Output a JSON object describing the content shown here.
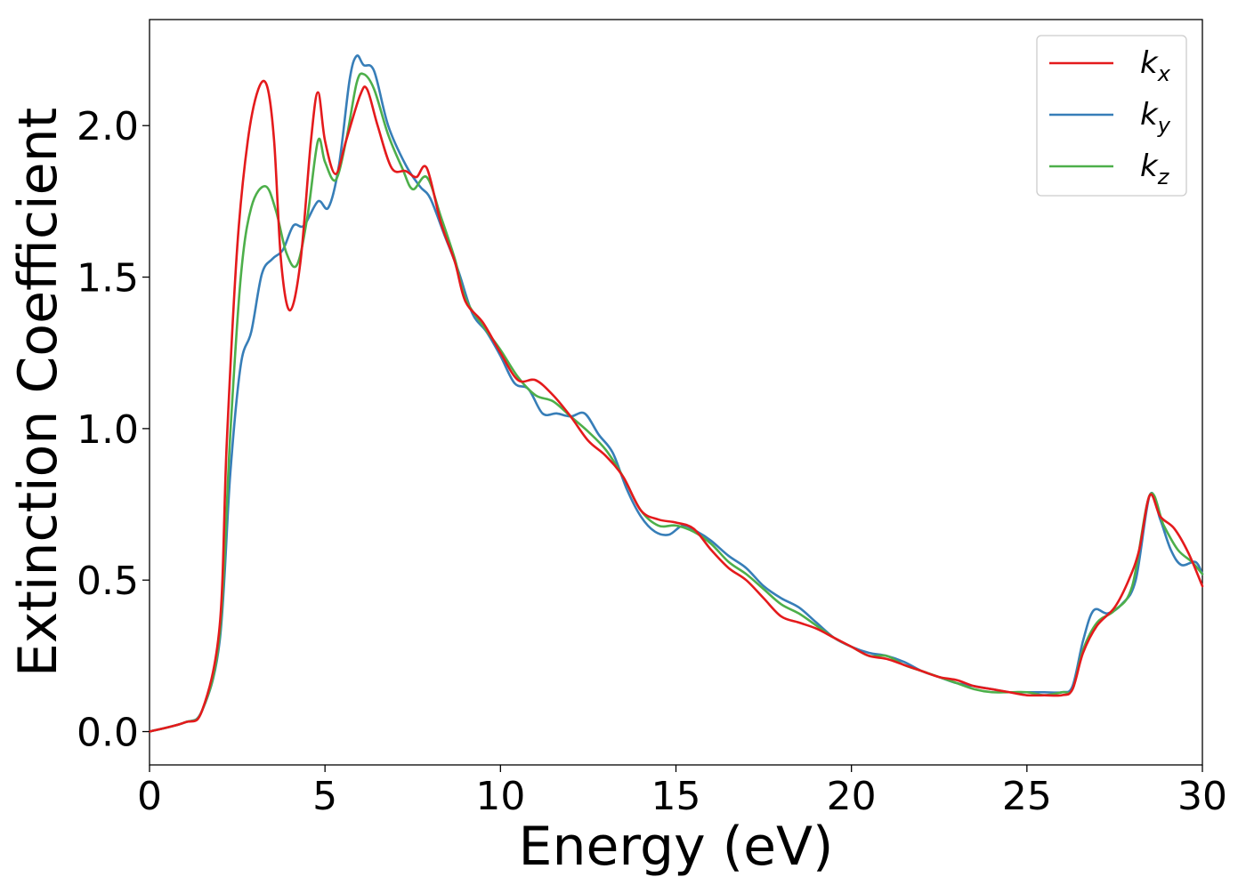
{
  "chart_data": {
    "type": "line",
    "title": "",
    "xlabel": "Energy (eV)",
    "ylabel": "Extinction Coefficient",
    "xlim": [
      0,
      30
    ],
    "ylim": [
      -0.11,
      2.35
    ],
    "xticks": [
      0,
      5,
      10,
      15,
      20,
      25,
      30
    ],
    "xtick_labels": [
      "0",
      "5",
      "10",
      "15",
      "20",
      "25",
      "30"
    ],
    "yticks": [
      0.0,
      0.5,
      1.0,
      1.5,
      2.0
    ],
    "ytick_labels": [
      "0.0",
      "0.5",
      "1.0",
      "1.5",
      "2.0"
    ],
    "grid": false,
    "legend_position": "top-right",
    "series": [
      {
        "name": "k_x",
        "label_base": "k",
        "label_sub": "x",
        "color": "#e41a1c",
        "points": [
          [
            0,
            0.0
          ],
          [
            1,
            0.03
          ],
          [
            1.5,
            0.07
          ],
          [
            2,
            0.35
          ],
          [
            2.2,
            0.95
          ],
          [
            2.5,
            1.6
          ],
          [
            2.8,
            1.95
          ],
          [
            3.1,
            2.12
          ],
          [
            3.35,
            2.13
          ],
          [
            3.55,
            1.95
          ],
          [
            3.75,
            1.55
          ],
          [
            4.0,
            1.39
          ],
          [
            4.3,
            1.55
          ],
          [
            4.6,
            1.95
          ],
          [
            4.8,
            2.11
          ],
          [
            5.0,
            1.95
          ],
          [
            5.3,
            1.84
          ],
          [
            5.6,
            1.95
          ],
          [
            6.0,
            2.1
          ],
          [
            6.2,
            2.12
          ],
          [
            6.5,
            2.0
          ],
          [
            6.9,
            1.86
          ],
          [
            7.3,
            1.85
          ],
          [
            7.6,
            1.83
          ],
          [
            7.9,
            1.86
          ],
          [
            8.3,
            1.68
          ],
          [
            8.7,
            1.55
          ],
          [
            9.0,
            1.42
          ],
          [
            9.5,
            1.35
          ],
          [
            10.0,
            1.25
          ],
          [
            10.5,
            1.16
          ],
          [
            11.0,
            1.16
          ],
          [
            11.5,
            1.11
          ],
          [
            12.0,
            1.04
          ],
          [
            12.5,
            0.96
          ],
          [
            13.0,
            0.91
          ],
          [
            13.5,
            0.84
          ],
          [
            14.0,
            0.73
          ],
          [
            14.5,
            0.7
          ],
          [
            15.0,
            0.69
          ],
          [
            15.5,
            0.67
          ],
          [
            16.0,
            0.6
          ],
          [
            16.5,
            0.54
          ],
          [
            17.0,
            0.5
          ],
          [
            17.5,
            0.44
          ],
          [
            18.0,
            0.38
          ],
          [
            18.5,
            0.36
          ],
          [
            19.0,
            0.34
          ],
          [
            19.5,
            0.31
          ],
          [
            20.0,
            0.28
          ],
          [
            20.5,
            0.25
          ],
          [
            21.0,
            0.24
          ],
          [
            21.5,
            0.22
          ],
          [
            22.0,
            0.2
          ],
          [
            22.5,
            0.18
          ],
          [
            23.0,
            0.17
          ],
          [
            23.5,
            0.15
          ],
          [
            24.0,
            0.14
          ],
          [
            24.5,
            0.13
          ],
          [
            25.0,
            0.12
          ],
          [
            25.5,
            0.12
          ],
          [
            26.0,
            0.12
          ],
          [
            26.3,
            0.14
          ],
          [
            26.6,
            0.26
          ],
          [
            27.0,
            0.35
          ],
          [
            27.5,
            0.41
          ],
          [
            27.9,
            0.5
          ],
          [
            28.2,
            0.6
          ],
          [
            28.5,
            0.78
          ],
          [
            28.8,
            0.71
          ],
          [
            29.2,
            0.67
          ],
          [
            29.6,
            0.59
          ],
          [
            30.0,
            0.48
          ]
        ]
      },
      {
        "name": "k_y",
        "label_base": "k",
        "label_sub": "y",
        "color": "#377eb8",
        "points": [
          [
            0,
            0.0
          ],
          [
            1,
            0.03
          ],
          [
            1.5,
            0.07
          ],
          [
            2,
            0.3
          ],
          [
            2.3,
            0.85
          ],
          [
            2.6,
            1.21
          ],
          [
            2.9,
            1.32
          ],
          [
            3.2,
            1.51
          ],
          [
            3.5,
            1.56
          ],
          [
            3.8,
            1.59
          ],
          [
            4.1,
            1.67
          ],
          [
            4.4,
            1.67
          ],
          [
            4.8,
            1.75
          ],
          [
            5.1,
            1.73
          ],
          [
            5.4,
            1.87
          ],
          [
            5.7,
            2.15
          ],
          [
            5.9,
            2.23
          ],
          [
            6.1,
            2.2
          ],
          [
            6.4,
            2.18
          ],
          [
            6.8,
            2.0
          ],
          [
            7.3,
            1.87
          ],
          [
            7.7,
            1.8
          ],
          [
            8.0,
            1.76
          ],
          [
            8.4,
            1.64
          ],
          [
            8.8,
            1.52
          ],
          [
            9.2,
            1.38
          ],
          [
            9.6,
            1.32
          ],
          [
            10.0,
            1.24
          ],
          [
            10.4,
            1.15
          ],
          [
            10.8,
            1.13
          ],
          [
            11.2,
            1.05
          ],
          [
            11.6,
            1.05
          ],
          [
            12.0,
            1.04
          ],
          [
            12.4,
            1.05
          ],
          [
            12.8,
            0.98
          ],
          [
            13.2,
            0.92
          ],
          [
            13.6,
            0.8
          ],
          [
            14.0,
            0.71
          ],
          [
            14.4,
            0.66
          ],
          [
            14.8,
            0.65
          ],
          [
            15.2,
            0.68
          ],
          [
            15.6,
            0.66
          ],
          [
            16.0,
            0.63
          ],
          [
            16.5,
            0.58
          ],
          [
            17.0,
            0.54
          ],
          [
            17.5,
            0.48
          ],
          [
            18.0,
            0.44
          ],
          [
            18.5,
            0.41
          ],
          [
            19.0,
            0.36
          ],
          [
            19.5,
            0.31
          ],
          [
            20.0,
            0.28
          ],
          [
            20.5,
            0.26
          ],
          [
            21.0,
            0.25
          ],
          [
            21.5,
            0.23
          ],
          [
            22.0,
            0.2
          ],
          [
            22.5,
            0.18
          ],
          [
            23.0,
            0.16
          ],
          [
            23.5,
            0.15
          ],
          [
            24.0,
            0.14
          ],
          [
            24.5,
            0.13
          ],
          [
            25.0,
            0.13
          ],
          [
            25.5,
            0.13
          ],
          [
            26.0,
            0.13
          ],
          [
            26.3,
            0.15
          ],
          [
            26.6,
            0.3
          ],
          [
            26.9,
            0.4
          ],
          [
            27.3,
            0.39
          ],
          [
            27.7,
            0.42
          ],
          [
            28.1,
            0.5
          ],
          [
            28.5,
            0.78
          ],
          [
            28.8,
            0.7
          ],
          [
            29.1,
            0.6
          ],
          [
            29.4,
            0.55
          ],
          [
            29.8,
            0.56
          ],
          [
            30.0,
            0.52
          ]
        ]
      },
      {
        "name": "k_z",
        "label_base": "k",
        "label_sub": "z",
        "color": "#4daf4a",
        "points": [
          [
            0,
            0.0
          ],
          [
            1,
            0.03
          ],
          [
            1.5,
            0.07
          ],
          [
            2,
            0.32
          ],
          [
            2.3,
            0.98
          ],
          [
            2.6,
            1.5
          ],
          [
            2.9,
            1.73
          ],
          [
            3.3,
            1.8
          ],
          [
            3.6,
            1.72
          ],
          [
            3.9,
            1.58
          ],
          [
            4.2,
            1.54
          ],
          [
            4.5,
            1.7
          ],
          [
            4.8,
            1.95
          ],
          [
            5.0,
            1.88
          ],
          [
            5.3,
            1.82
          ],
          [
            5.6,
            1.95
          ],
          [
            5.9,
            2.14
          ],
          [
            6.1,
            2.17
          ],
          [
            6.4,
            2.12
          ],
          [
            6.8,
            1.97
          ],
          [
            7.2,
            1.86
          ],
          [
            7.5,
            1.79
          ],
          [
            7.9,
            1.83
          ],
          [
            8.3,
            1.7
          ],
          [
            8.7,
            1.56
          ],
          [
            9.0,
            1.43
          ],
          [
            9.5,
            1.34
          ],
          [
            10.0,
            1.26
          ],
          [
            10.5,
            1.17
          ],
          [
            11.0,
            1.11
          ],
          [
            11.5,
            1.09
          ],
          [
            12.0,
            1.04
          ],
          [
            12.5,
            0.99
          ],
          [
            13.0,
            0.93
          ],
          [
            13.5,
            0.84
          ],
          [
            14.0,
            0.73
          ],
          [
            14.5,
            0.68
          ],
          [
            15.0,
            0.68
          ],
          [
            15.5,
            0.66
          ],
          [
            16.0,
            0.62
          ],
          [
            16.5,
            0.56
          ],
          [
            17.0,
            0.52
          ],
          [
            17.5,
            0.47
          ],
          [
            18.0,
            0.42
          ],
          [
            18.5,
            0.39
          ],
          [
            19.0,
            0.35
          ],
          [
            19.5,
            0.31
          ],
          [
            20.0,
            0.28
          ],
          [
            20.5,
            0.25
          ],
          [
            21.0,
            0.25
          ],
          [
            21.5,
            0.22
          ],
          [
            22.0,
            0.2
          ],
          [
            22.5,
            0.18
          ],
          [
            23.0,
            0.16
          ],
          [
            23.5,
            0.14
          ],
          [
            24.0,
            0.13
          ],
          [
            24.5,
            0.13
          ],
          [
            25.0,
            0.13
          ],
          [
            25.5,
            0.12
          ],
          [
            26.0,
            0.13
          ],
          [
            26.3,
            0.14
          ],
          [
            26.6,
            0.27
          ],
          [
            27.0,
            0.36
          ],
          [
            27.5,
            0.4
          ],
          [
            28.0,
            0.48
          ],
          [
            28.5,
            0.78
          ],
          [
            28.9,
            0.68
          ],
          [
            29.3,
            0.6
          ],
          [
            29.7,
            0.56
          ],
          [
            30.0,
            0.52
          ]
        ]
      }
    ]
  }
}
